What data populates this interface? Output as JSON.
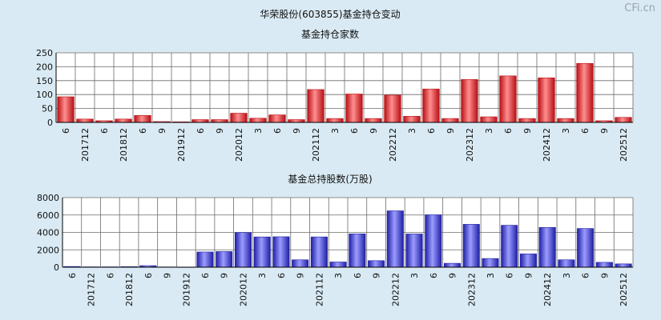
{
  "main_title": "华荣股份(603855)基金持仓变动",
  "watermark": "CFi.cn",
  "chart_data": [
    {
      "type": "bar",
      "title": "基金持仓家数",
      "color": "#e8262b",
      "ylim": [
        0,
        250
      ],
      "yticks": [
        0,
        50,
        100,
        150,
        200,
        250
      ],
      "grid": true,
      "categories": [
        "6",
        "201712",
        "6",
        "201812",
        "6",
        "9",
        "201912",
        "6",
        "9",
        "202012",
        "3",
        "6",
        "9",
        "202112",
        "3",
        "6",
        "9",
        "202212",
        "3",
        "6",
        "9",
        "202312",
        "3",
        "6",
        "9",
        "202412",
        "3",
        "6",
        "9",
        "202512"
      ],
      "values": [
        92,
        12,
        6,
        12,
        25,
        3,
        2,
        10,
        10,
        33,
        15,
        27,
        10,
        118,
        14,
        102,
        14,
        98,
        22,
        120,
        14,
        154,
        20,
        167,
        14,
        160,
        14,
        212,
        6,
        18
      ]
    },
    {
      "type": "bar",
      "title": "基金总持股数(万股)",
      "color": "#3b3bd6",
      "ylim": [
        0,
        8000
      ],
      "yticks": [
        0,
        2000,
        4000,
        6000,
        8000
      ],
      "grid": true,
      "categories": [
        "6",
        "201712",
        "6",
        "201812",
        "6",
        "9",
        "201912",
        "6",
        "9",
        "202012",
        "3",
        "6",
        "9",
        "202112",
        "3",
        "6",
        "9",
        "202212",
        "3",
        "6",
        "9",
        "202312",
        "3",
        "6",
        "9",
        "202412",
        "3",
        "6",
        "9",
        "202512"
      ],
      "values": [
        80,
        40,
        40,
        60,
        180,
        30,
        20,
        1750,
        1800,
        3980,
        3480,
        3500,
        850,
        3480,
        600,
        3830,
        750,
        6480,
        3820,
        6020,
        450,
        4930,
        1000,
        4820,
        1530,
        4570,
        850,
        4450,
        560,
        380
      ]
    }
  ]
}
